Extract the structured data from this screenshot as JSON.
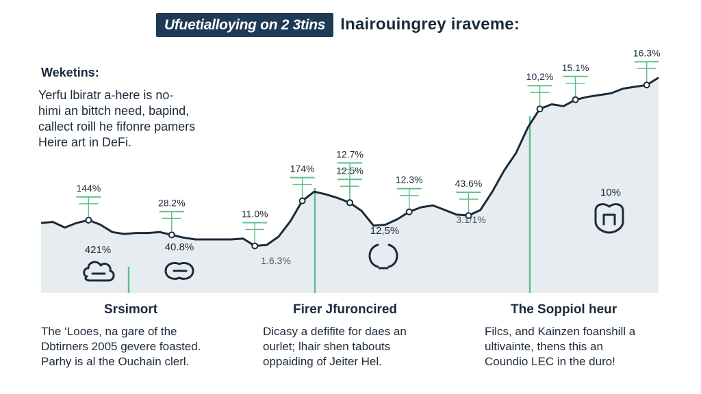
{
  "header": {
    "badge": "Ufuetiallоying on 2 3tins",
    "title": "Inairouingrey iraveme:"
  },
  "intro": {
    "title": "Weketins:",
    "lines": [
      "Yerfu lbiratr a-here is no-",
      "himi an bittch need, bapind,",
      "callect roill he fifonre pamers",
      "Heire art in DeFi."
    ]
  },
  "sections": [
    {
      "title": "Srsimort",
      "lines": [
        "The ‘Looes, na gare of the",
        "Dbtirners 2005 gevere foasted.",
        "Parhy is al the Ouchain clerl."
      ]
    },
    {
      "title": "Firer Jfuroncired",
      "lines": [
        "Dicasy a defifite for daes an",
        "ourlet; lhair shen tabouts",
        "oppaiding of Jeiter Hel."
      ]
    },
    {
      "title": "The Soppiol heur",
      "lines": [
        "Filcs, and Kainzen foanshill a",
        "ultivainte, thens this an",
        "Coundio LEC in the duro!"
      ]
    }
  ],
  "chart_data": {
    "type": "area",
    "x": [
      0,
      1,
      2,
      3,
      4,
      5,
      6,
      7,
      8,
      9,
      10,
      11,
      12,
      13,
      14,
      15,
      16,
      17,
      18,
      19,
      20,
      21,
      22,
      23,
      24,
      25,
      26,
      27,
      28,
      29,
      30,
      31,
      32,
      33,
      34,
      35,
      36,
      37,
      38,
      39,
      40,
      41,
      42,
      43,
      44,
      45,
      46,
      47,
      48,
      49,
      50,
      51,
      52
    ],
    "values": [
      7.6,
      7.7,
      7.1,
      7.6,
      7.9,
      7.4,
      6.6,
      6.4,
      6.5,
      6.5,
      6.6,
      6.3,
      6.0,
      5.8,
      5.8,
      5.8,
      5.8,
      5.9,
      5.1,
      5.2,
      6.1,
      7.8,
      10.0,
      11.0,
      10.7,
      10.3,
      9.8,
      8.9,
      7.3,
      7.4,
      8.0,
      8.8,
      9.3,
      9.5,
      9.0,
      8.5,
      8.4,
      9.0,
      11.0,
      13.3,
      15.2,
      18.0,
      20.0,
      20.5,
      20.3,
      21.0,
      21.3,
      21.5,
      21.7,
      22.2,
      22.4,
      22.6,
      23.4
    ],
    "markers": [
      {
        "i": 4,
        "label": "144%"
      },
      {
        "i": 11,
        "label": "28.2%"
      },
      {
        "i": 18,
        "label": "11.0%"
      },
      {
        "i": 22,
        "label": "174%"
      },
      {
        "i": 26,
        "label": "12.5%"
      },
      {
        "i": 26,
        "label": "12.7%"
      },
      {
        "i": 31,
        "label": "12.3%"
      },
      {
        "i": 36,
        "label": "43.6%"
      },
      {
        "i": 42,
        "label": "10,2%"
      },
      {
        "i": 45,
        "label": "15.1%"
      },
      {
        "i": 51,
        "label": "16.3%"
      }
    ],
    "annotations": [
      "421%",
      "40.8%",
      "1.6.3%",
      "12,5%",
      "3.1/1%",
      "10%"
    ],
    "icons": [
      "cloud-icon",
      "cloud-icon",
      "ring-icon",
      "shield-icon"
    ],
    "colors": {
      "line": "#1b2a3a",
      "fill": "#e7ecf0",
      "accent": "#5fbf8e",
      "text": "#1b2a3a"
    }
  }
}
